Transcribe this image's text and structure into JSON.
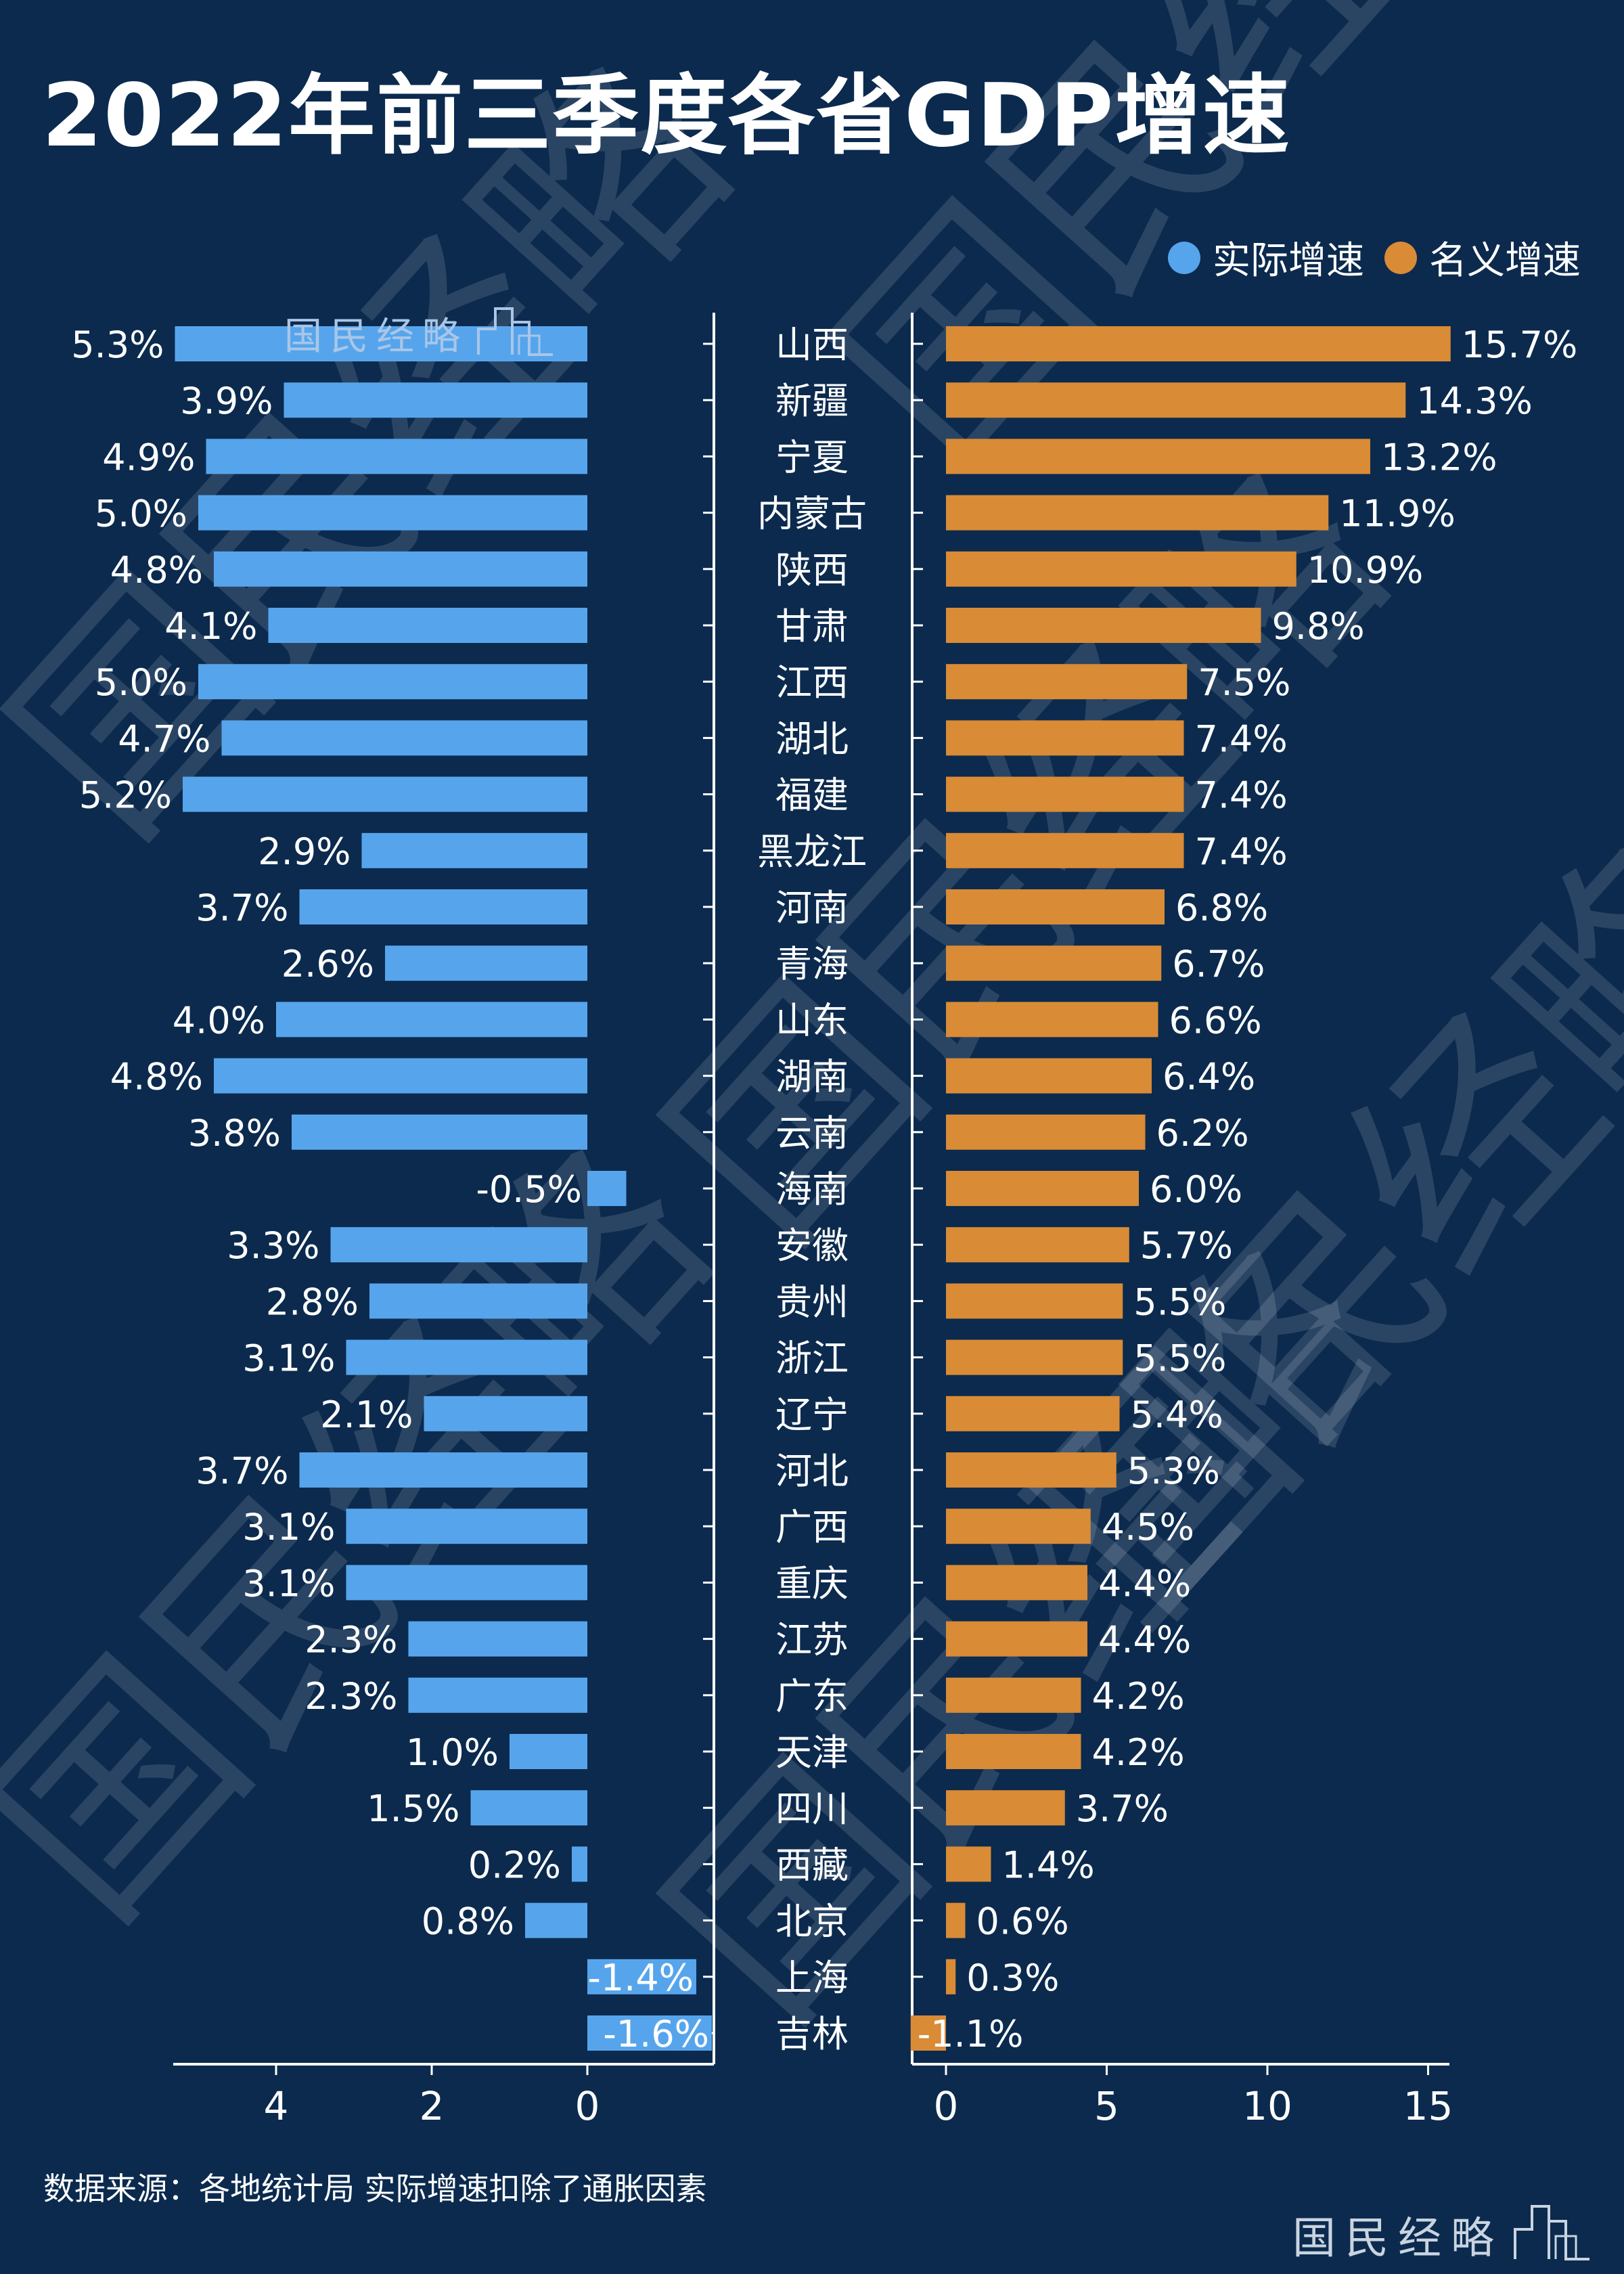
{
  "title": "2022年前三季度各省GDP增速",
  "source_note": "数据来源：各地统计局 实际增速扣除了通胀因素",
  "brand": "国民经略",
  "watermark": "国民经略",
  "colors": {
    "background": "#0b2a4e",
    "real": "#56a5ec",
    "nominal": "#d98b35",
    "axis": "#ffffff",
    "text": "#ffffff"
  },
  "legend": [
    {
      "label": "实际增速",
      "color": "#56a5ec"
    },
    {
      "label": "名义增速",
      "color": "#d98b35"
    }
  ],
  "chart_data": {
    "type": "bar",
    "orientation": "horizontal",
    "categories": [
      "山西",
      "新疆",
      "宁夏",
      "内蒙古",
      "陕西",
      "甘肃",
      "江西",
      "湖北",
      "福建",
      "黑龙江",
      "河南",
      "青海",
      "山东",
      "湖南",
      "云南",
      "海南",
      "安徽",
      "贵州",
      "浙江",
      "辽宁",
      "河北",
      "广西",
      "重庆",
      "江苏",
      "广东",
      "天津",
      "四川",
      "西藏",
      "北京",
      "上海",
      "吉林"
    ],
    "series": [
      {
        "name": "实际增速",
        "values": [
          5.3,
          3.9,
          4.9,
          5.0,
          4.8,
          4.1,
          5.0,
          4.7,
          5.2,
          2.9,
          3.7,
          2.6,
          4.0,
          4.8,
          3.8,
          -0.5,
          3.3,
          2.8,
          3.1,
          2.1,
          3.7,
          3.1,
          3.1,
          2.3,
          2.3,
          1.0,
          1.5,
          0.2,
          0.8,
          -1.4,
          -1.6
        ],
        "labels": [
          "5.3%",
          "3.9%",
          "4.9%",
          "5.0%",
          "4.8%",
          "4.1%",
          "5.0%",
          "4.7%",
          "5.2%",
          "2.9%",
          "3.7%",
          "2.6%",
          "4.0%",
          "4.8%",
          "3.8%",
          "-0.5%",
          "3.3%",
          "2.8%",
          "3.1%",
          "2.1%",
          "3.7%",
          "3.1%",
          "3.1%",
          "2.3%",
          "2.3%",
          "1.0%",
          "1.5%",
          "0.2%",
          "0.8%",
          "-1.4%",
          "-1.6%"
        ],
        "axis_ticks": [
          "4",
          "2",
          "0"
        ],
        "axis_direction": "reversed",
        "xlim": [
          -1.6,
          5.3
        ]
      },
      {
        "name": "名义增速",
        "values": [
          15.7,
          14.3,
          13.2,
          11.9,
          10.9,
          9.8,
          7.5,
          7.4,
          7.4,
          7.4,
          6.8,
          6.7,
          6.6,
          6.4,
          6.2,
          6.0,
          5.7,
          5.5,
          5.5,
          5.4,
          5.3,
          4.5,
          4.4,
          4.4,
          4.2,
          4.2,
          3.7,
          1.4,
          0.6,
          0.3,
          -1.1
        ],
        "labels": [
          "15.7%",
          "14.3%",
          "13.2%",
          "11.9%",
          "10.9%",
          "9.8%",
          "7.5%",
          "7.4%",
          "7.4%",
          "7.4%",
          "6.8%",
          "6.7%",
          "6.6%",
          "6.4%",
          "6.2%",
          "6.0%",
          "5.7%",
          "5.5%",
          "5.5%",
          "5.4%",
          "5.3%",
          "4.5%",
          "4.4%",
          "4.4%",
          "4.2%",
          "4.2%",
          "3.7%",
          "1.4%",
          "0.6%",
          "0.3%",
          "-1.1%"
        ],
        "axis_ticks": [
          "0",
          "5",
          "10",
          "15"
        ],
        "xlim": [
          -1.1,
          15.7
        ]
      }
    ],
    "grid": false,
    "legend_position": "top-right"
  }
}
